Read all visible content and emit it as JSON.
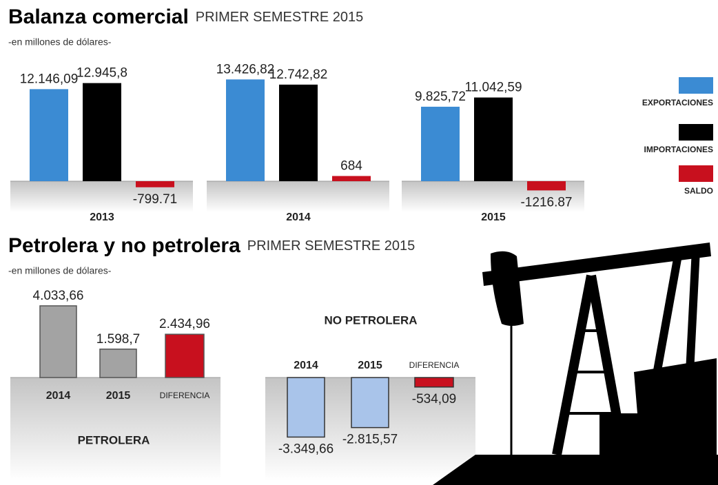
{
  "chart_data": [
    {
      "type": "bar",
      "title": "Balanza comercial",
      "subtitle": "PRIMER SEMESTRE 2015",
      "note": "-en millones de dólares-",
      "categories": [
        "2013",
        "2014",
        "2015"
      ],
      "series": [
        {
          "name": "EXPORTACIONES",
          "color": "#3b8bd3",
          "values": [
            12146.09,
            13426.82,
            9825.72
          ],
          "value_labels": [
            "12.146,09",
            "13.426,82",
            "9.825,72"
          ]
        },
        {
          "name": "IMPORTACIONES",
          "color": "#000000",
          "values": [
            12945.8,
            12742.82,
            11042.59
          ],
          "value_labels": [
            "12.945,8",
            "12.742,82",
            "11.042,59"
          ]
        },
        {
          "name": "SALDO",
          "color": "#c8101e",
          "values": [
            -799.71,
            684,
            -1216.87
          ]
        }
      ]
    },
    {
      "type": "bar",
      "title": "Petrolera y no petrolera",
      "subtitle": "PRIMER SEMESTRE 2015",
      "note": "-en millones de dólares-",
      "label": "PETROLERA",
      "categories": [
        "2014",
        "2015",
        "DIFERENCIA"
      ],
      "values": [
        4033.66,
        1598.7,
        2434.96
      ],
      "value_labels": [
        "4.033,66",
        "1.598,7",
        "2.434,96"
      ],
      "colors": [
        "#a3a3a3",
        "#a3a3a3",
        "#c8101e"
      ]
    },
    {
      "type": "bar",
      "title": "NO PETROLERA",
      "categories": [
        "2014",
        "2015",
        "DIFERENCIA"
      ],
      "values": [
        -3349.66,
        -2815.57,
        -534.09
      ],
      "value_labels": [
        "-3.349,66",
        "-2.815,57",
        "-534,09"
      ],
      "colors": [
        "#a9c4ea",
        "#a9c4ea",
        "#c8101e"
      ]
    }
  ]
}
